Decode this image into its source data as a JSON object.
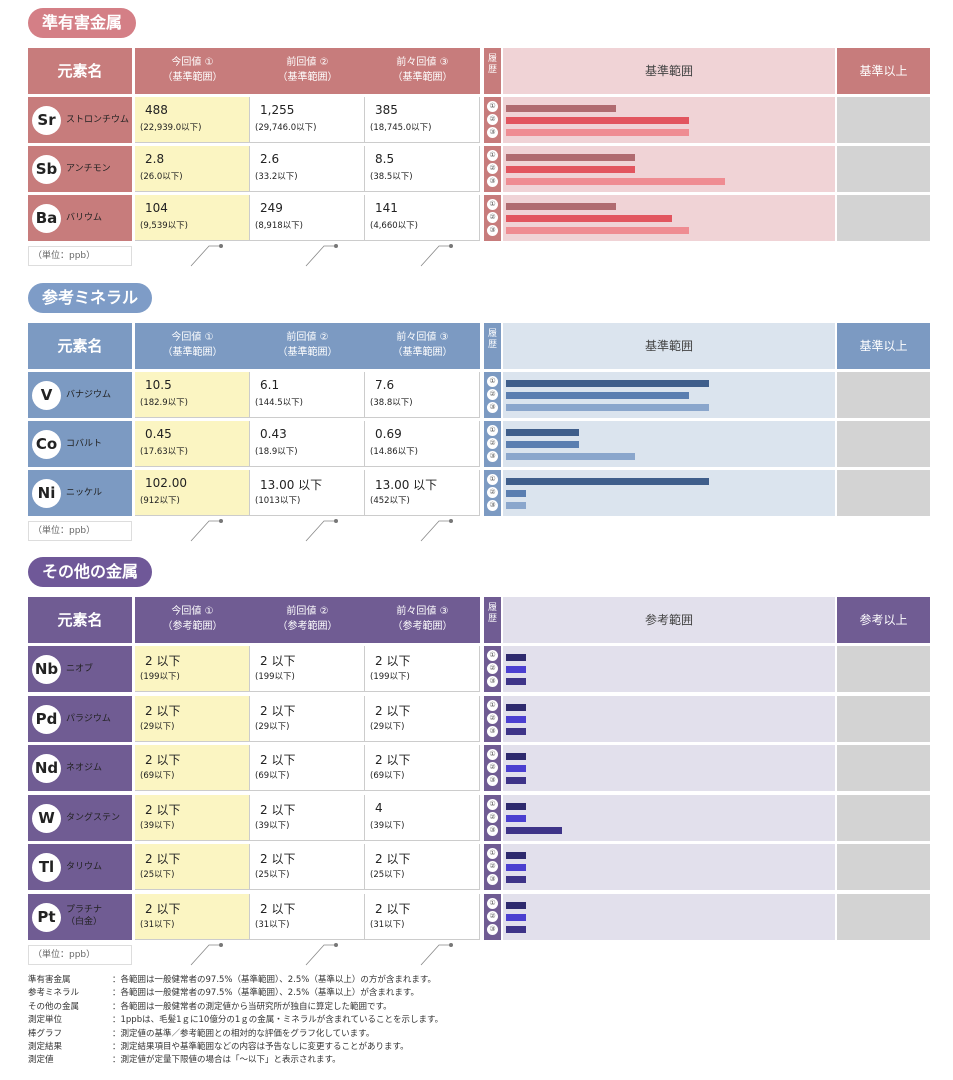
{
  "colors": {
    "s1_main": "#c77c7c",
    "s1_title": "#d47f86",
    "s1_bg": "#f0d3d6",
    "s1_bar_prev": "#b06b70",
    "s1_bar_cur": "#e2555f",
    "s1_bar_light": "#ef8c92",
    "s2_main": "#7c9ac2",
    "s2_title": "#7e9cc7",
    "s2_bg": "#dbe4ee",
    "s2_bar1": "#3f5e8b",
    "s2_bar2": "#5a7eb0",
    "s2_bar3": "#8aa6cc",
    "s3_main": "#705c93",
    "s3_title": "#6f5898",
    "s3_bg": "#e2e0ec",
    "s3_bar1": "#2e2a6e",
    "s3_bar2": "#4b3fd0",
    "s3_bar3": "#3e3488",
    "yellow": "#fbf5c2"
  },
  "sections": [
    {
      "title": "準有害金属",
      "header": {
        "elem": "元素名",
        "cur": "今回値 ①",
        "cur_sub": "（基準範囲）",
        "prev": "前回値 ②",
        "prev_sub": "（基準範囲）",
        "prev2": "前々回値 ③",
        "prev2_sub": "（基準範囲）",
        "hist": "履歴",
        "range": "基準範囲",
        "over": "基準以上"
      },
      "unit": "（単位：ppb）",
      "rows": [
        {
          "sym": "Sr",
          "name": "ストロンチウム",
          "cur": "488",
          "cur_sub": "(22,939.0以下)",
          "prev": "1,255",
          "prev_sub": "(29,746.0以下)",
          "prev2": "385",
          "prev2_sub": "(18,745.0以下)",
          "bars": [
            0.33,
            0.55,
            0.55
          ]
        },
        {
          "sym": "Sb",
          "name": "アンチモン",
          "cur": "2.8",
          "cur_sub": "(26.0以下)",
          "prev": "2.6",
          "prev_sub": "(33.2以下)",
          "prev2": "8.5",
          "prev2_sub": "(38.5以下)",
          "bars": [
            0.39,
            0.39,
            0.66
          ]
        },
        {
          "sym": "Ba",
          "name": "バリウム",
          "cur": "104",
          "cur_sub": "(9,539以下)",
          "prev": "249",
          "prev_sub": "(8,918以下)",
          "prev2": "141",
          "prev2_sub": "(4,660以下)",
          "bars": [
            0.33,
            0.5,
            0.55
          ]
        }
      ]
    },
    {
      "title": "参考ミネラル",
      "header": {
        "elem": "元素名",
        "cur": "今回値 ①",
        "cur_sub": "（基準範囲）",
        "prev": "前回値 ②",
        "prev_sub": "（基準範囲）",
        "prev2": "前々回値 ③",
        "prev2_sub": "（基準範囲）",
        "hist": "履歴",
        "range": "基準範囲",
        "over": "基準以上"
      },
      "unit": "（単位：ppb）",
      "rows": [
        {
          "sym": "V",
          "name": "バナジウム",
          "cur": "10.5",
          "cur_sub": "(182.9以下)",
          "prev": "6.1",
          "prev_sub": "(144.5以下)",
          "prev2": "7.6",
          "prev2_sub": "(38.8以下)",
          "bars": [
            0.61,
            0.55,
            0.61
          ]
        },
        {
          "sym": "Co",
          "name": "コバルト",
          "cur": "0.45",
          "cur_sub": "(17.63以下)",
          "prev": "0.43",
          "prev_sub": "(18.9以下)",
          "prev2": "0.69",
          "prev2_sub": "(14.86以下)",
          "bars": [
            0.22,
            0.22,
            0.39
          ]
        },
        {
          "sym": "Ni",
          "name": "ニッケル",
          "cur": "102.00",
          "cur_sub": "(912以下)",
          "prev": "13.00 以下",
          "prev_sub": "(1013以下)",
          "prev2": "13.00 以下",
          "prev2_sub": "(452以下)",
          "bars": [
            0.61,
            0.06,
            0.06
          ]
        }
      ]
    },
    {
      "title": "その他の金属",
      "header": {
        "elem": "元素名",
        "cur": "今回値 ①",
        "cur_sub": "（参考範囲）",
        "prev": "前回値 ②",
        "prev_sub": "（参考範囲）",
        "prev2": "前々回値 ③",
        "prev2_sub": "（参考範囲）",
        "hist": "履歴",
        "range": "参考範囲",
        "over": "参考以上"
      },
      "unit": "（単位：ppb）",
      "rows": [
        {
          "sym": "Nb",
          "name": "ニオブ",
          "cur": "2 以下",
          "cur_sub": "(199以下)",
          "prev": "2 以下",
          "prev_sub": "(199以下)",
          "prev2": "2 以下",
          "prev2_sub": "(199以下)",
          "bars": [
            0.06,
            0.06,
            0.06
          ]
        },
        {
          "sym": "Pd",
          "name": "パラジウム",
          "cur": "2 以下",
          "cur_sub": "(29以下)",
          "prev": "2 以下",
          "prev_sub": "(29以下)",
          "prev2": "2 以下",
          "prev2_sub": "(29以下)",
          "bars": [
            0.06,
            0.06,
            0.06
          ]
        },
        {
          "sym": "Nd",
          "name": "ネオジム",
          "cur": "2 以下",
          "cur_sub": "(69以下)",
          "prev": "2 以下",
          "prev_sub": "(69以下)",
          "prev2": "2 以下",
          "prev2_sub": "(69以下)",
          "bars": [
            0.06,
            0.06,
            0.06
          ]
        },
        {
          "sym": "W",
          "name": "タングステン",
          "cur": "2 以下",
          "cur_sub": "(39以下)",
          "prev": "2 以下",
          "prev_sub": "(39以下)",
          "prev2": "4",
          "prev2_sub": "(39以下)",
          "bars": [
            0.06,
            0.06,
            0.17
          ]
        },
        {
          "sym": "Tl",
          "name": "タリウム",
          "cur": "2 以下",
          "cur_sub": "(25以下)",
          "prev": "2 以下",
          "prev_sub": "(25以下)",
          "prev2": "2 以下",
          "prev2_sub": "(25以下)",
          "bars": [
            0.06,
            0.06,
            0.06
          ]
        },
        {
          "sym": "Pt",
          "name": "プラチナ",
          "name2": "（白金）",
          "cur": "2 以下",
          "cur_sub": "(31以下)",
          "prev": "2 以下",
          "prev_sub": "(31以下)",
          "prev2": "2 以下",
          "prev2_sub": "(31以下)",
          "bars": [
            0.06,
            0.06,
            0.06
          ]
        }
      ]
    }
  ],
  "hist_marks": [
    "①",
    "②",
    "③"
  ],
  "notes": [
    {
      "k": "準有害金属",
      "v": "：各範囲は一般健常者の97.5%（基準範囲）、2.5%（基準以上）の方が含まれます。"
    },
    {
      "k": "参考ミネラル",
      "v": "：各範囲は一般健常者の97.5%（基準範囲）、2.5%（基準以上）が含まれます。"
    },
    {
      "k": "その他の金属",
      "v": "：各範囲は一般健常者の測定値から当研究所が独自に算定した範囲です。"
    },
    {
      "k": "測定単位",
      "v": "：1ppbは、毛髪1ｇに10億分の1ｇの金属・ミネラルが含まれていることを示します。"
    },
    {
      "k": "棒グラフ",
      "v": "：測定値の基準／参考範囲との相対的な評価をグラフ化しています。"
    },
    {
      "k": "測定結果",
      "v": "：測定結果項目や基準範囲などの内容は予告なしに変更することがあります。"
    },
    {
      "k": "測定値",
      "v": "：測定値が定量下限値の場合は「～以下」と表示されます。"
    }
  ]
}
